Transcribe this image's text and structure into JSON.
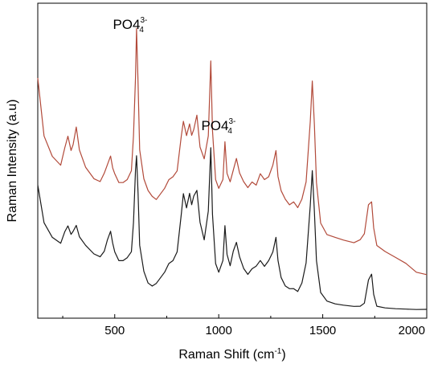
{
  "chart_data": {
    "type": "line",
    "xlabel": "Raman Shift (cm",
    "xlabel_sup": "-1",
    "xlabel_close": ")",
    "ylabel": "Raman Intensity (a.u)",
    "xlim": [
      130,
      2000
    ],
    "ylim": [
      0,
      1
    ],
    "x_ticks": [
      500,
      1000,
      1500,
      2000
    ],
    "y_ticks_shown": false,
    "grid": false,
    "annotations": [
      {
        "text": "PO4",
        "sup": "3-",
        "sub": "4",
        "x": 605,
        "y": 0.97
      },
      {
        "text": "PO4",
        "sup": "3-",
        "sub": "4",
        "x": 1030,
        "y": 0.62
      }
    ],
    "series": [
      {
        "color": "#b24a3a",
        "x": [
          130,
          160,
          200,
          240,
          260,
          275,
          290,
          300,
          315,
          330,
          360,
          400,
          430,
          450,
          465,
          480,
          490,
          500,
          520,
          540,
          560,
          580,
          590,
          600,
          605,
          612,
          620,
          640,
          660,
          680,
          700,
          720,
          740,
          760,
          780,
          800,
          820,
          830,
          845,
          860,
          870,
          880,
          895,
          910,
          930,
          950,
          962,
          970,
          985,
          1000,
          1020,
          1030,
          1040,
          1055,
          1070,
          1085,
          1100,
          1120,
          1140,
          1160,
          1180,
          1200,
          1220,
          1240,
          1260,
          1275,
          1285,
          1300,
          1320,
          1340,
          1360,
          1380,
          1400,
          1420,
          1440,
          1450,
          1460,
          1470,
          1490,
          1520,
          1560,
          1600,
          1650,
          1680,
          1700,
          1720,
          1735,
          1745,
          1760,
          1800,
          1850,
          1900,
          1950,
          2000
        ],
        "y": [
          0.8,
          0.6,
          0.53,
          0.5,
          0.56,
          0.6,
          0.55,
          0.57,
          0.63,
          0.55,
          0.49,
          0.45,
          0.44,
          0.47,
          0.5,
          0.53,
          0.49,
          0.47,
          0.44,
          0.44,
          0.45,
          0.48,
          0.6,
          0.8,
          0.97,
          0.78,
          0.55,
          0.45,
          0.41,
          0.39,
          0.38,
          0.4,
          0.42,
          0.45,
          0.46,
          0.48,
          0.6,
          0.65,
          0.6,
          0.64,
          0.6,
          0.62,
          0.67,
          0.56,
          0.52,
          0.6,
          0.86,
          0.62,
          0.45,
          0.42,
          0.45,
          0.58,
          0.47,
          0.44,
          0.48,
          0.52,
          0.47,
          0.44,
          0.42,
          0.44,
          0.43,
          0.47,
          0.45,
          0.46,
          0.5,
          0.55,
          0.46,
          0.41,
          0.38,
          0.36,
          0.37,
          0.35,
          0.38,
          0.44,
          0.65,
          0.79,
          0.64,
          0.44,
          0.3,
          0.26,
          0.25,
          0.24,
          0.23,
          0.24,
          0.26,
          0.36,
          0.37,
          0.28,
          0.22,
          0.2,
          0.18,
          0.16,
          0.13,
          0.12
        ]
      },
      {
        "color": "#1a1a1a",
        "x": [
          130,
          160,
          200,
          240,
          260,
          275,
          290,
          300,
          315,
          330,
          360,
          400,
          430,
          450,
          465,
          480,
          490,
          500,
          520,
          540,
          560,
          580,
          590,
          600,
          605,
          612,
          620,
          640,
          660,
          680,
          700,
          720,
          740,
          760,
          780,
          800,
          820,
          830,
          845,
          860,
          870,
          880,
          895,
          910,
          930,
          950,
          962,
          970,
          985,
          1000,
          1020,
          1030,
          1040,
          1055,
          1070,
          1085,
          1100,
          1120,
          1140,
          1160,
          1180,
          1200,
          1220,
          1240,
          1260,
          1275,
          1285,
          1300,
          1320,
          1340,
          1360,
          1380,
          1400,
          1420,
          1440,
          1450,
          1460,
          1470,
          1490,
          1520,
          1560,
          1600,
          1650,
          1680,
          1700,
          1720,
          1735,
          1745,
          1760,
          1800,
          1850,
          1900,
          1950,
          2000
        ],
        "y": [
          0.43,
          0.3,
          0.25,
          0.23,
          0.27,
          0.29,
          0.26,
          0.27,
          0.29,
          0.25,
          0.22,
          0.19,
          0.18,
          0.2,
          0.24,
          0.27,
          0.23,
          0.2,
          0.17,
          0.17,
          0.18,
          0.2,
          0.3,
          0.48,
          0.53,
          0.4,
          0.22,
          0.13,
          0.09,
          0.08,
          0.09,
          0.11,
          0.13,
          0.16,
          0.17,
          0.2,
          0.33,
          0.4,
          0.35,
          0.4,
          0.36,
          0.39,
          0.41,
          0.3,
          0.24,
          0.34,
          0.56,
          0.33,
          0.16,
          0.13,
          0.17,
          0.29,
          0.19,
          0.15,
          0.2,
          0.23,
          0.18,
          0.14,
          0.12,
          0.14,
          0.15,
          0.17,
          0.15,
          0.17,
          0.2,
          0.25,
          0.17,
          0.11,
          0.08,
          0.07,
          0.07,
          0.06,
          0.09,
          0.16,
          0.36,
          0.48,
          0.34,
          0.17,
          0.06,
          0.03,
          0.02,
          0.015,
          0.01,
          0.01,
          0.02,
          0.1,
          0.12,
          0.05,
          0.01,
          0.005,
          0.003,
          0.002,
          0.001,
          0.0
        ]
      }
    ]
  }
}
